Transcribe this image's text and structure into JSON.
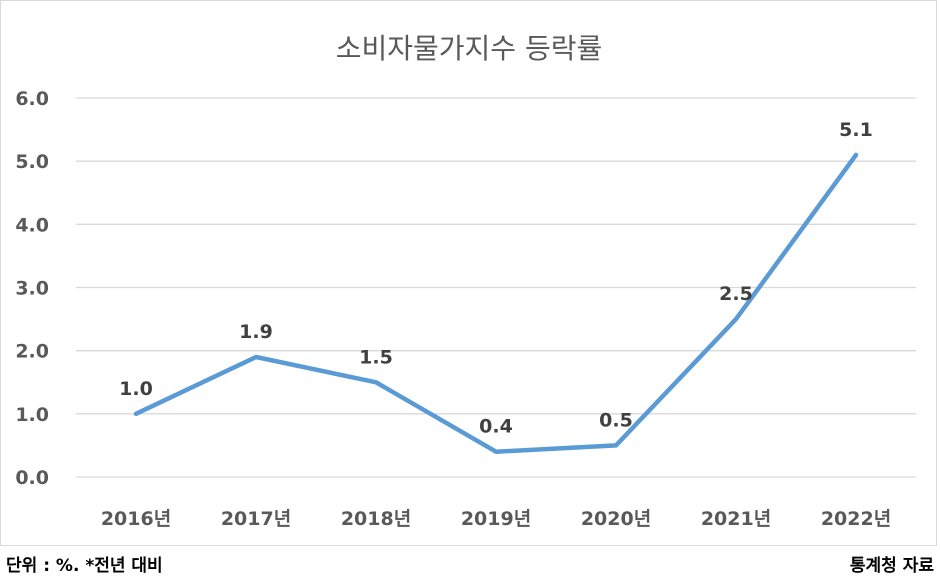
{
  "chart_data": {
    "type": "line",
    "title": "소비자물가지수 등락률",
    "categories": [
      "2016년",
      "2017년",
      "2018년",
      "2019년",
      "2020년",
      "2021년",
      "2022년"
    ],
    "series": [
      {
        "values": [
          1.0,
          1.9,
          1.5,
          0.4,
          0.5,
          2.5,
          5.1
        ]
      }
    ],
    "data_labels": [
      "1.0",
      "1.9",
      "1.5",
      "0.4",
      "0.5",
      "2.5",
      "5.1"
    ],
    "y_ticks": [
      "0.0",
      "1.0",
      "2.0",
      "3.0",
      "4.0",
      "5.0",
      "6.0"
    ],
    "ylim": [
      0,
      6
    ],
    "grid": true,
    "legend": "none",
    "colors": {
      "line": "#5b9bd5",
      "grid": "#d9d9d9",
      "text": "#595959"
    }
  },
  "footer": {
    "note": "단위 : %. *전년 대비",
    "source": "통계청 자료"
  }
}
